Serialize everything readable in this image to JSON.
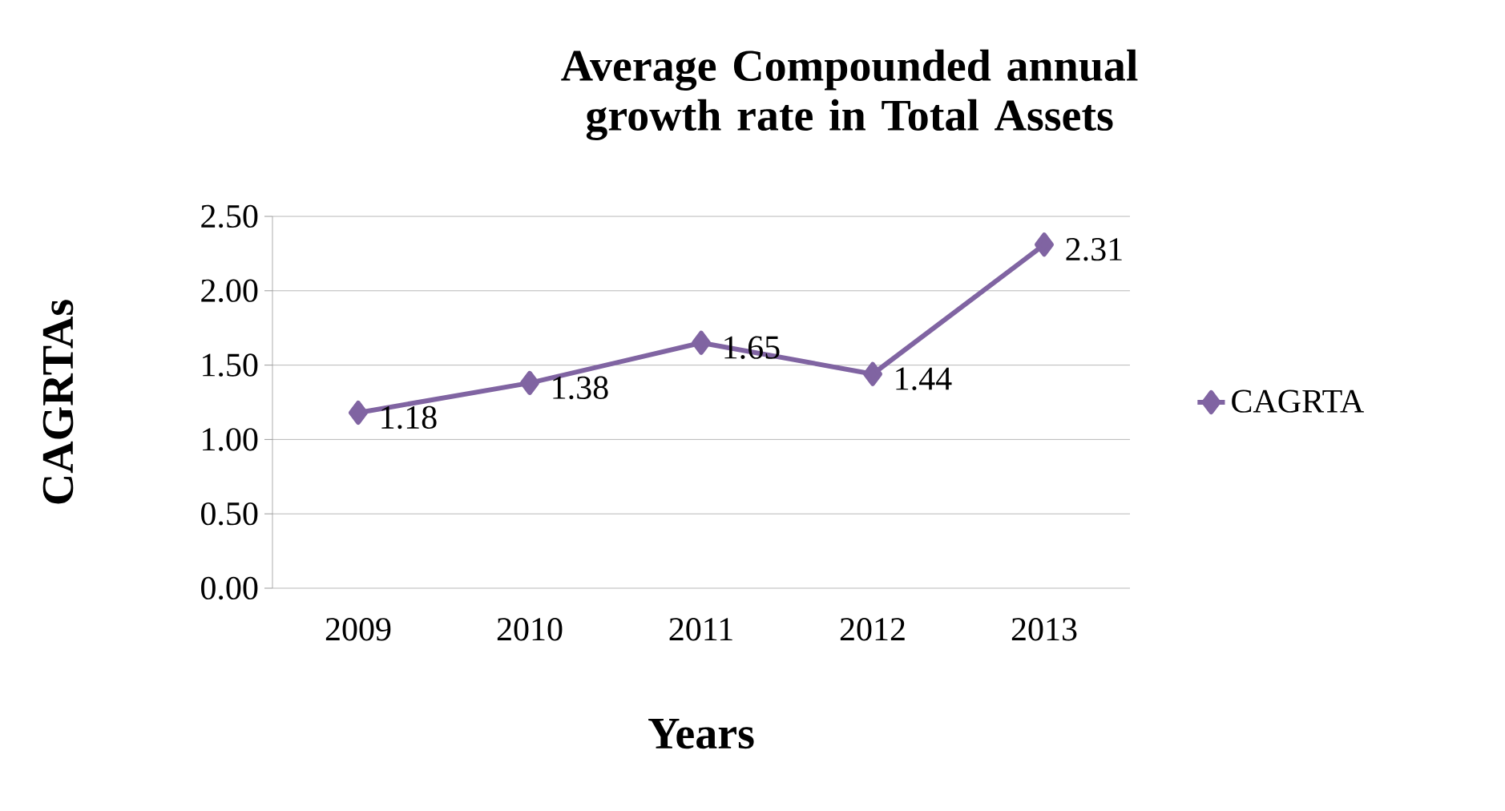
{
  "chart_data": {
    "type": "line",
    "title": "Average Compounded annual growth rate in Total Assets",
    "xlabel": "Years",
    "ylabel": "CAGRTAs",
    "categories": [
      "2009",
      "2010",
      "2011",
      "2012",
      "2013"
    ],
    "series": [
      {
        "name": "CAGRTA",
        "color": "#8064a2",
        "values": [
          1.18,
          1.38,
          1.65,
          1.44,
          2.31
        ]
      }
    ],
    "ylim": [
      0,
      2.5
    ],
    "yticks": [
      {
        "value": 0,
        "label": "0.00"
      },
      {
        "value": 0.5,
        "label": "0.50"
      },
      {
        "value": 1,
        "label": "1.00"
      },
      {
        "value": 1.5,
        "label": "1.50"
      },
      {
        "value": 2,
        "label": "2.00"
      },
      {
        "value": 2.5,
        "label": "2.50"
      }
    ],
    "grid": "y",
    "legend": "right",
    "marker": "diamond",
    "line_style": "solid",
    "data_labels": true
  }
}
